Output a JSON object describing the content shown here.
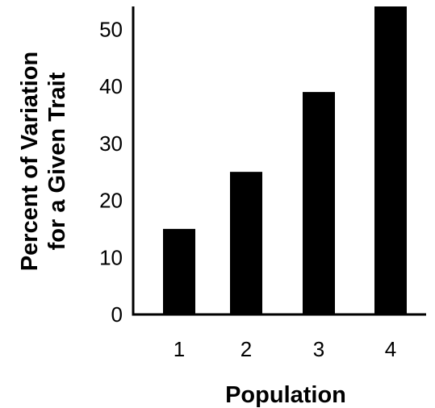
{
  "chart_data": {
    "type": "bar",
    "categories": [
      "1",
      "2",
      "3",
      "4"
    ],
    "values": [
      15,
      25,
      39,
      54
    ],
    "title": "",
    "xlabel": "Population",
    "ylabel_lines": [
      "Percent of Variation",
      "for a Given Trait"
    ],
    "ylim": [
      0,
      54
    ],
    "yticks": [
      0,
      10,
      20,
      30,
      40,
      50
    ],
    "grid": false,
    "bar_color": "#000000"
  }
}
